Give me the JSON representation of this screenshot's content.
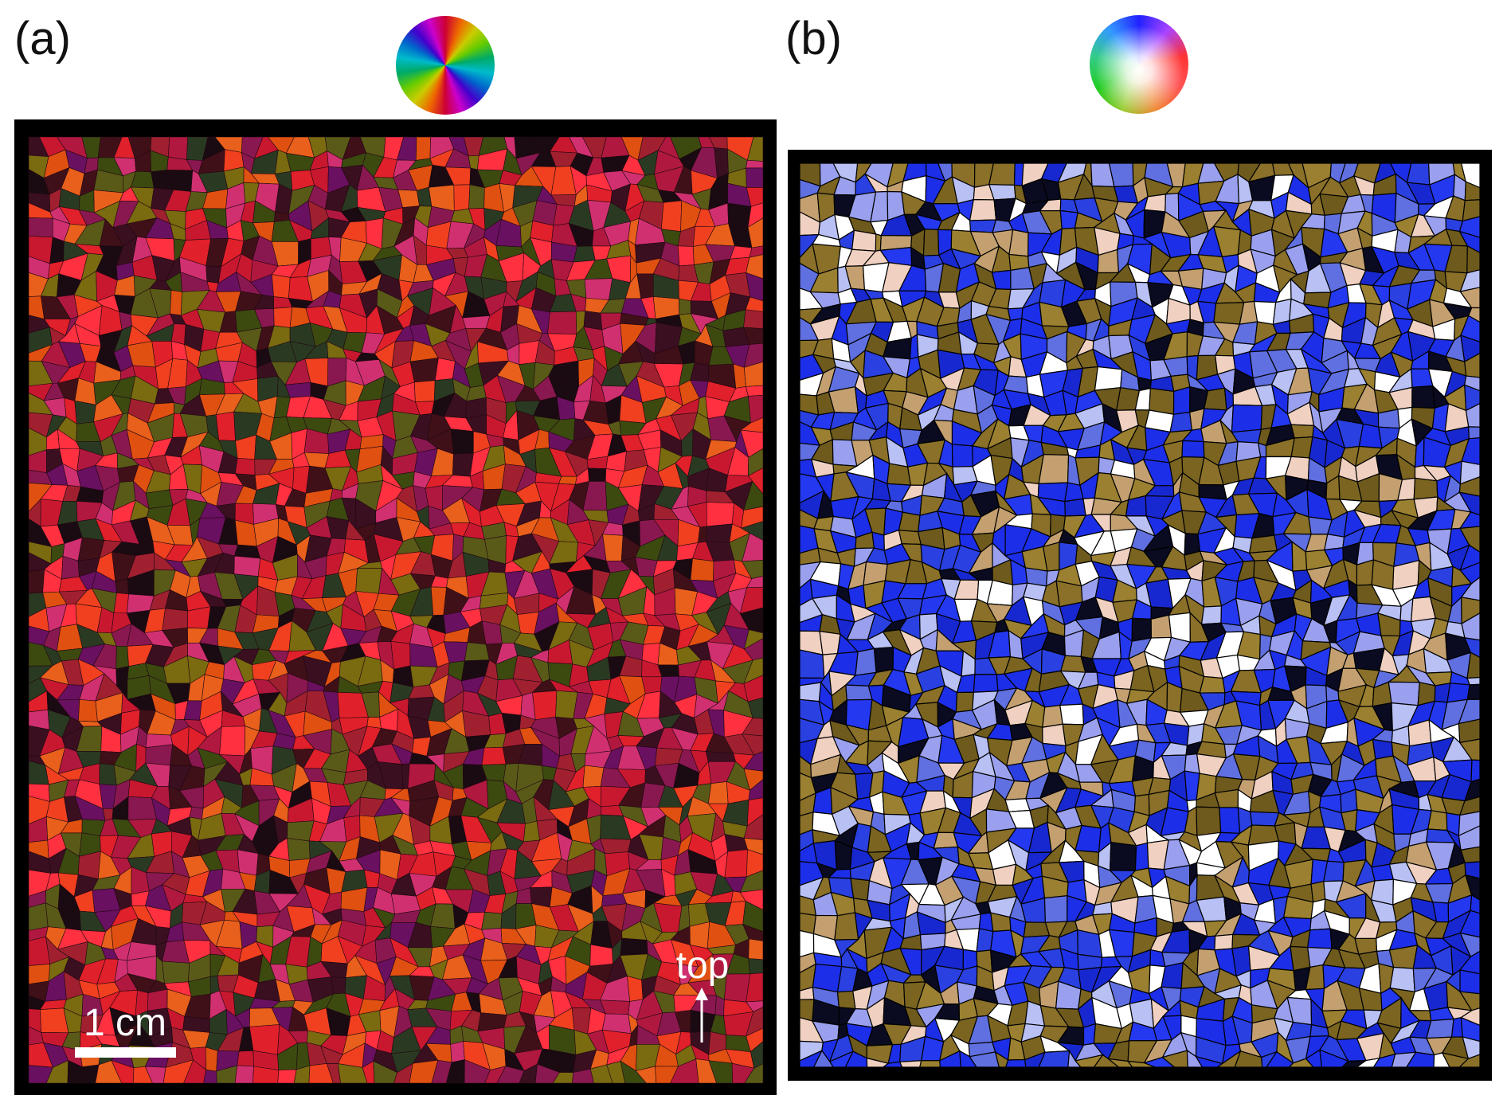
{
  "panels": [
    {
      "label": "(a)"
    },
    {
      "label": "(b)"
    }
  ],
  "scale_bar": {
    "label": "1 cm"
  },
  "direction": {
    "label": "top"
  }
}
